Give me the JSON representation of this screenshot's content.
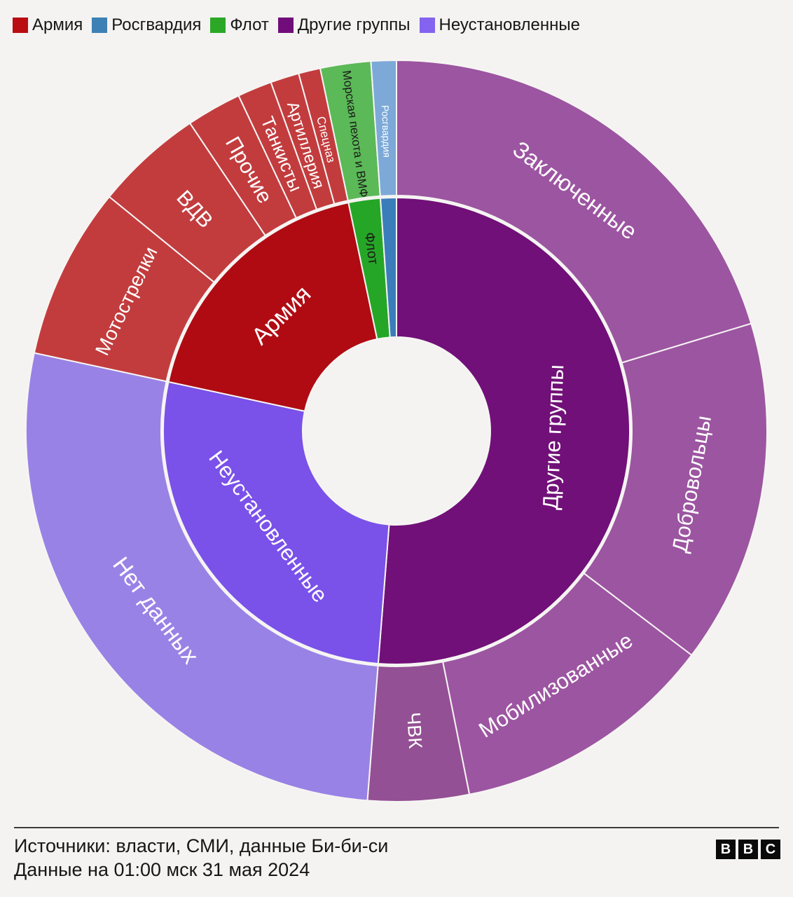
{
  "legend": {
    "items": [
      {
        "id": "army",
        "label": "Армия",
        "color": "#b90d12"
      },
      {
        "id": "rosgvardia",
        "label": "Росгвардия",
        "color": "#3d80b5"
      },
      {
        "id": "navy",
        "label": "Флот",
        "color": "#2aa826"
      },
      {
        "id": "other-groups",
        "label": "Другие группы",
        "color": "#710d7a"
      },
      {
        "id": "unidentified",
        "label": "Неустановленные",
        "color": "#8463f0"
      }
    ]
  },
  "chart_data": {
    "type": "sunburst",
    "direction": "clockwise from 12 o'clock",
    "units": "share of total, % (estimated from arc angles)",
    "rings": [
      "category (inner)",
      "subcategory (outer)"
    ],
    "groups": [
      {
        "id": "other-groups",
        "label": "Другие группы",
        "value": 51.2,
        "color": "#711078",
        "text_color": "#ffffff",
        "label_style": "tangential",
        "label_size": 31,
        "label_r": 224,
        "children": [
          {
            "id": "prisoners",
            "label": "Заключенные",
            "value": 20.3,
            "color": "#9c55a1",
            "text_color": "#ffffff",
            "label_style": "tangential",
            "label_size": 33
          },
          {
            "id": "volunteers",
            "label": "Добровольцы",
            "value": 15.0,
            "color": "#9c55a1",
            "text_color": "#ffffff",
            "label_style": "tangential",
            "label_size": 31
          },
          {
            "id": "mobilized",
            "label": "Мобилизованные",
            "value": 11.5,
            "color": "#9c55a1",
            "text_color": "#ffffff",
            "label_style": "tangential",
            "label_size": 31
          },
          {
            "id": "pmc",
            "label": "ЧВК",
            "value": 4.4,
            "color": "#945094",
            "text_color": "#ffffff",
            "label_style": "radial",
            "label_size": 27
          }
        ]
      },
      {
        "id": "unidentified",
        "label": "Неустановленные",
        "value": 27.1,
        "color": "#7a51e9",
        "text_color": "#ffffff",
        "label_style": "tangential",
        "label_size": 31,
        "label_r": 228,
        "children": [
          {
            "id": "no-data",
            "label": "Нет данных",
            "value": 27.1,
            "color": "#9982e5",
            "text_color": "#ffffff",
            "label_style": "tangential",
            "label_size": 33
          }
        ]
      },
      {
        "id": "army",
        "label": "Армия",
        "value": 18.3,
        "color": "#b00b13",
        "text_color": "#ffffff",
        "label_style": "tangential",
        "label_size": 34,
        "label_r": 233,
        "children": [
          {
            "id": "motorized-infantry",
            "label": "Мотострелки",
            "value": 7.5,
            "color": "#c23c3e",
            "text_color": "#ffffff",
            "label_style": "tangential",
            "label_size": 28
          },
          {
            "id": "vdv",
            "label": "ВДВ",
            "value": 4.7,
            "color": "#c23c3e",
            "text_color": "#ffffff",
            "label_style": "radial",
            "label_size": 30
          },
          {
            "id": "other",
            "label": "Прочие",
            "value": 2.4,
            "color": "#c23c3e",
            "text_color": "#ffffff",
            "label_style": "radial",
            "label_size": 30
          },
          {
            "id": "tank-crews",
            "label": "Танкисты",
            "value": 1.5,
            "color": "#c23c3e",
            "text_color": "#ffffff",
            "label_style": "radial",
            "label_size": 26
          },
          {
            "id": "artillery",
            "label": "Артиллерия",
            "value": 1.25,
            "color": "#c23c3e",
            "text_color": "#ffffff",
            "label_style": "radial",
            "label_size": 23
          },
          {
            "id": "spetsnaz",
            "label": "Спецназ",
            "value": 0.95,
            "color": "#c23c3e",
            "text_color": "#ffffff",
            "label_style": "radial",
            "label_size": 17
          }
        ]
      },
      {
        "id": "navy",
        "label": "Флот",
        "value": 2.2,
        "color": "#26a627",
        "text_color": "#1c1c1a",
        "label_style": "radial",
        "label_size": 20,
        "label_r": 263,
        "children": [
          {
            "id": "marines-navy",
            "label": "Морская пехота и ВМФ",
            "value": 2.2,
            "color": "#5bb957",
            "text_color": "#1c1c1a",
            "label_style": "radial",
            "label_size": 17
          }
        ]
      },
      {
        "id": "rosgvardia",
        "label": "Росгвардия",
        "value": 1.1,
        "color": "#3b7dbb",
        "text_color": "#ffffff",
        "label_style": "radial",
        "show_label": false,
        "children": [
          {
            "id": "rosgvardia-outer",
            "label": "Росгвардия",
            "value": 1.1,
            "color": "#7ca9d8",
            "text_color": "#ffffff",
            "label_style": "radial",
            "label_size": 14
          }
        ]
      }
    ]
  },
  "footer": {
    "sources": "Источники: власти, СМИ, данные Би-би-си",
    "updated": "Данные на 01:00 мск 31 мая 2024",
    "logo_letters": [
      "B",
      "B",
      "C"
    ]
  }
}
